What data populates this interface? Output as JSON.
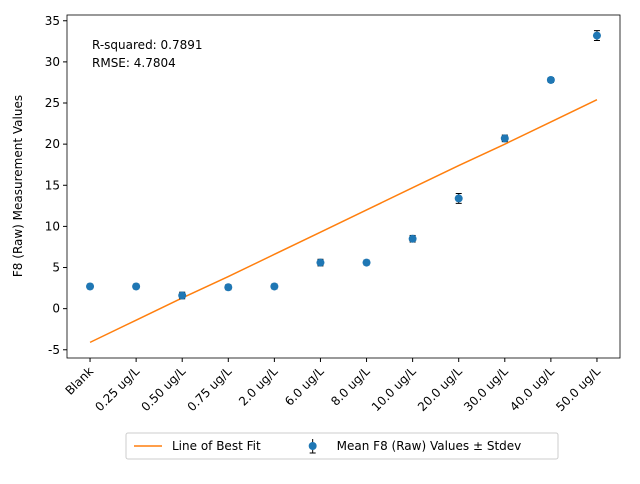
{
  "chart_data": {
    "type": "line",
    "ylabel": "F8 (Raw) Measurement Values",
    "annotations": [
      "R-squared: 0.7891",
      "RMSE: 4.7804"
    ],
    "categories": [
      "Blank",
      "0.25 ug/L",
      "0.50 ug/L",
      "0.75 ug/L",
      "2.0 ug/L",
      "6.0 ug/L",
      "8.0 ug/L",
      "10.0 ug/L",
      "20.0 ug/L",
      "30.0 ug/L",
      "40.0 ug/L",
      "50.0 ug/L"
    ],
    "series": [
      {
        "name": "Line of Best Fit",
        "type": "line",
        "color": "#ff7f0e",
        "values": [
          -4.1,
          -1.4,
          1.3,
          3.9,
          6.6,
          9.3,
          12.0,
          14.7,
          17.4,
          20.0,
          22.7,
          25.4
        ]
      },
      {
        "name": "Mean F8 (Raw) Values ± Stdev",
        "type": "errorbar",
        "color": "#1f77b4",
        "values": [
          2.7,
          2.7,
          1.6,
          2.6,
          2.7,
          5.6,
          5.6,
          8.5,
          13.4,
          20.7,
          27.8,
          33.2
        ],
        "errors": [
          0.3,
          0.3,
          0.4,
          0.3,
          0.3,
          0.4,
          0.3,
          0.4,
          0.6,
          0.4,
          0.3,
          0.6
        ]
      }
    ],
    "ylim": [
      -6,
      35.7
    ],
    "yticks": [
      -5,
      0,
      5,
      10,
      15,
      20,
      25,
      30,
      35
    ],
    "legend": "bottom"
  }
}
